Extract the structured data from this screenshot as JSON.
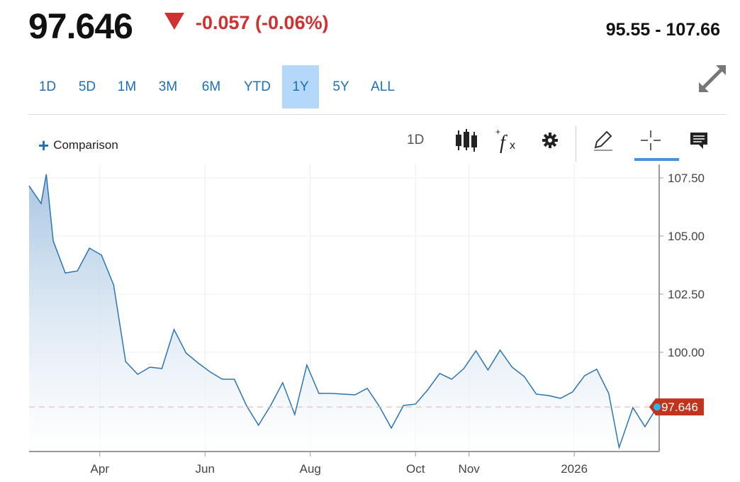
{
  "header": {
    "price": "97.646",
    "change": "-0.057 (-0.06%)",
    "direction": "down",
    "range": "95.55 - 107.66",
    "down_color": "#d0302f"
  },
  "timeframes": [
    {
      "label": "1D",
      "active": false
    },
    {
      "label": "5D",
      "active": false
    },
    {
      "label": "1M",
      "active": false
    },
    {
      "label": "3M",
      "active": false
    },
    {
      "label": "6M",
      "active": false
    },
    {
      "label": "YTD",
      "active": false
    },
    {
      "label": "1Y",
      "active": true
    },
    {
      "label": "5Y",
      "active": false
    },
    {
      "label": "ALL",
      "active": false
    }
  ],
  "toolbar": {
    "comparison_label": "Comparison",
    "interval_label": "1D",
    "icons": [
      "candlestick-icon",
      "function-icon",
      "gear-icon",
      "pencil-icon",
      "crosshair-icon",
      "comment-icon",
      "expand-icon"
    ]
  },
  "chart_data": {
    "type": "area",
    "line_color": "#2a75b3",
    "last_value": 97.646,
    "last_value_label": "97.646",
    "last_tag_color": "#c0341d",
    "ylim": [
      95.73,
      108.08
    ],
    "yticks": [
      107.5,
      105.0,
      102.5,
      100.0
    ],
    "ytick_labels": [
      "107.50",
      "105.00",
      "102.50",
      "100.00"
    ],
    "xticks": [
      {
        "date": "2025-04-01",
        "label": "Apr"
      },
      {
        "date": "2025-06-01",
        "label": "Jun"
      },
      {
        "date": "2025-08-01",
        "label": "Aug"
      },
      {
        "date": "2025-10-01",
        "label": "Oct"
      },
      {
        "date": "2025-11-01",
        "label": "Nov"
      },
      {
        "date": "2026-01-01",
        "label": "2026"
      }
    ],
    "grid": true,
    "points": [
      [
        "2025-02-19",
        107.16
      ],
      [
        "2025-02-26",
        106.4
      ],
      [
        "2025-03-01",
        107.66
      ],
      [
        "2025-03-05",
        104.79
      ],
      [
        "2025-03-12",
        103.41
      ],
      [
        "2025-03-19",
        103.5
      ],
      [
        "2025-03-26",
        104.48
      ],
      [
        "2025-04-02",
        104.18
      ],
      [
        "2025-04-09",
        102.9
      ],
      [
        "2025-04-16",
        99.6
      ],
      [
        "2025-04-23",
        99.05
      ],
      [
        "2025-04-30",
        99.36
      ],
      [
        "2025-05-07",
        99.3
      ],
      [
        "2025-05-14",
        100.98
      ],
      [
        "2025-05-21",
        99.97
      ],
      [
        "2025-05-28",
        99.54
      ],
      [
        "2025-06-04",
        99.15
      ],
      [
        "2025-06-11",
        98.84
      ],
      [
        "2025-06-18",
        98.84
      ],
      [
        "2025-06-25",
        97.71
      ],
      [
        "2025-07-02",
        96.86
      ],
      [
        "2025-07-09",
        97.71
      ],
      [
        "2025-07-16",
        98.69
      ],
      [
        "2025-07-23",
        97.32
      ],
      [
        "2025-07-30",
        99.45
      ],
      [
        "2025-08-06",
        98.23
      ],
      [
        "2025-08-13",
        98.23
      ],
      [
        "2025-08-20",
        98.2
      ],
      [
        "2025-08-27",
        98.17
      ],
      [
        "2025-09-03",
        98.45
      ],
      [
        "2025-09-10",
        97.68
      ],
      [
        "2025-09-17",
        96.74
      ],
      [
        "2025-09-24",
        97.71
      ],
      [
        "2025-10-01",
        97.77
      ],
      [
        "2025-10-08",
        98.38
      ],
      [
        "2025-10-15",
        99.09
      ],
      [
        "2025-10-22",
        98.84
      ],
      [
        "2025-10-29",
        99.3
      ],
      [
        "2025-11-05",
        100.06
      ],
      [
        "2025-11-12",
        99.24
      ],
      [
        "2025-11-19",
        100.09
      ],
      [
        "2025-11-26",
        99.36
      ],
      [
        "2025-12-03",
        98.96
      ],
      [
        "2025-12-10",
        98.2
      ],
      [
        "2025-12-17",
        98.14
      ],
      [
        "2025-12-24",
        98.02
      ],
      [
        "2025-12-31",
        98.29
      ],
      [
        "2026-01-07",
        98.99
      ],
      [
        "2026-01-14",
        99.27
      ],
      [
        "2026-01-21",
        98.23
      ],
      [
        "2026-01-27",
        95.9
      ],
      [
        "2026-02-04",
        97.62
      ],
      [
        "2026-02-11",
        96.8
      ],
      [
        "2026-02-18",
        97.646
      ]
    ]
  }
}
